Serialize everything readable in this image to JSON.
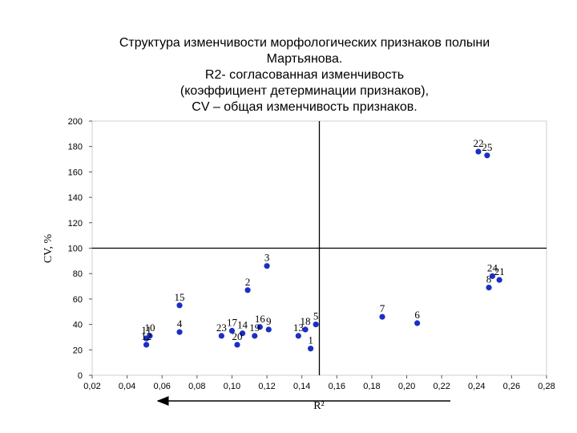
{
  "title_lines": [
    "Структура изменчивости морфологических признаков полыни",
    "Мартьянова.",
    "R2- согласованная изменчивость",
    "(коэффициент детерминации признаков),",
    "CV – общая изменчивость признаков."
  ],
  "chart_data": {
    "type": "scatter",
    "xlabel": "R²",
    "ylabel": "CV, %",
    "xlim": [
      0.02,
      0.28
    ],
    "ylim": [
      0,
      200
    ],
    "x_ticks": [
      "0,02",
      "0,04",
      "0,06",
      "0,08",
      "0,10",
      "0,12",
      "0,14",
      "0,16",
      "0,18",
      "0,20",
      "0,22",
      "0,24",
      "0,26",
      "0,28"
    ],
    "y_ticks": [
      "0",
      "20",
      "40",
      "60",
      "80",
      "100",
      "120",
      "140",
      "160",
      "180",
      "200"
    ],
    "reference_lines": {
      "x": 0.15,
      "y": 100
    },
    "grid": false,
    "marker_color": "#1a2fc4",
    "points": [
      {
        "label": "1",
        "x": 0.145,
        "y": 21
      },
      {
        "label": "2",
        "x": 0.109,
        "y": 67
      },
      {
        "label": "3",
        "x": 0.12,
        "y": 86
      },
      {
        "label": "4",
        "x": 0.07,
        "y": 34
      },
      {
        "label": "5",
        "x": 0.148,
        "y": 40
      },
      {
        "label": "6",
        "x": 0.206,
        "y": 41
      },
      {
        "label": "7",
        "x": 0.186,
        "y": 46
      },
      {
        "label": "8",
        "x": 0.247,
        "y": 69
      },
      {
        "label": "9",
        "x": 0.121,
        "y": 36
      },
      {
        "label": "10",
        "x": 0.053,
        "y": 31
      },
      {
        "label": "11",
        "x": 0.051,
        "y": 29
      },
      {
        "label": "12",
        "x": 0.051,
        "y": 24
      },
      {
        "label": "13",
        "x": 0.138,
        "y": 31
      },
      {
        "label": "14",
        "x": 0.106,
        "y": 33
      },
      {
        "label": "15",
        "x": 0.07,
        "y": 55
      },
      {
        "label": "16",
        "x": 0.116,
        "y": 38
      },
      {
        "label": "17",
        "x": 0.1,
        "y": 35
      },
      {
        "label": "18",
        "x": 0.142,
        "y": 36
      },
      {
        "label": "19",
        "x": 0.113,
        "y": 31
      },
      {
        "label": "20",
        "x": 0.103,
        "y": 24
      },
      {
        "label": "21",
        "x": 0.253,
        "y": 75
      },
      {
        "label": "22",
        "x": 0.241,
        "y": 176
      },
      {
        "label": "23",
        "x": 0.094,
        "y": 31
      },
      {
        "label": "24",
        "x": 0.249,
        "y": 78
      },
      {
        "label": "25",
        "x": 0.246,
        "y": 173
      }
    ]
  }
}
